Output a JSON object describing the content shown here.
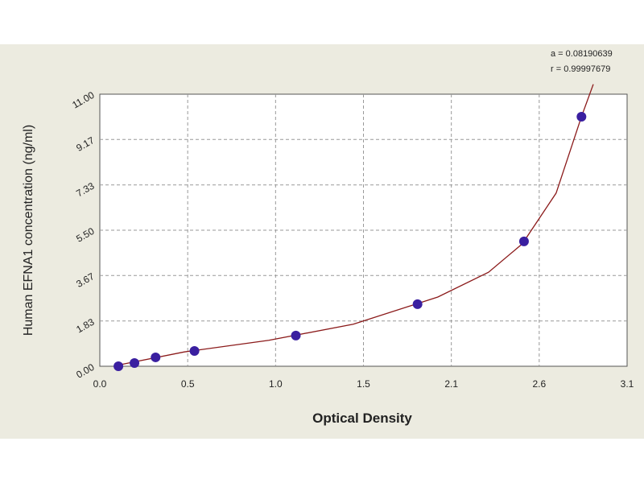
{
  "chart_data": {
    "type": "scatter",
    "x_label": "Optical Density",
    "y_label": "Human  EFNA1 concentration (ng/ml)",
    "annotations": [
      "a = 0.08190639",
      "r = 0.99997679"
    ],
    "xlim": [
      0,
      3.12
    ],
    "ylim": [
      0,
      11
    ],
    "xticks": [
      {
        "value": 0,
        "label": "0.0"
      },
      {
        "value": 0.52,
        "label": "0.5"
      },
      {
        "value": 1.04,
        "label": "1.0"
      },
      {
        "value": 1.56,
        "label": "1.5"
      },
      {
        "value": 2.08,
        "label": "2.1"
      },
      {
        "value": 2.6,
        "label": "2.6"
      },
      {
        "value": 3.12,
        "label": "3.1"
      }
    ],
    "yticks": [
      {
        "value": 0,
        "label": "0.00"
      },
      1.83,
      3.67,
      {
        "value": 5.5,
        "label": "5.50"
      },
      7.33,
      9.17,
      {
        "value": 11,
        "label": "11.00"
      }
    ],
    "grid": true,
    "points": {
      "color": "#3a1fa0",
      "x": [
        0.11,
        0.205,
        0.33,
        0.56,
        1.16,
        1.88,
        2.51,
        2.85
      ],
      "y": [
        0,
        0.13,
        0.36,
        0.62,
        1.24,
        2.51,
        5.05,
        10.09
      ]
    },
    "fit": {
      "color": "#8b1a1a",
      "x": [
        0.11,
        0.5,
        1.0,
        1.5,
        2.0,
        2.3,
        2.5,
        2.7,
        2.85,
        2.92
      ],
      "y": [
        0.05,
        0.58,
        1.05,
        1.7,
        2.8,
        3.8,
        4.95,
        7.0,
        10.09,
        11.4
      ]
    }
  }
}
